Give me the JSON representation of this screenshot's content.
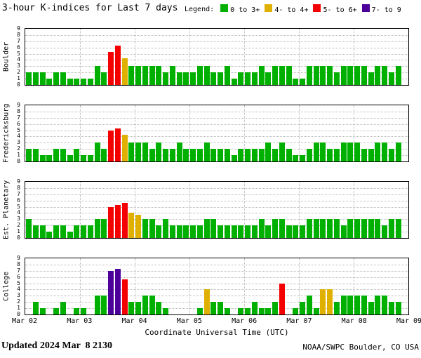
{
  "title": "3-hour K-indices for Last 7 days",
  "legend": {
    "label": "Legend:",
    "items": [
      {
        "label": "0 to 3+",
        "color": "#00b000"
      },
      {
        "label": "4- to 4+",
        "color": "#e0b000"
      },
      {
        "label": "5- to 6+",
        "color": "#f40000"
      },
      {
        "label": "7- to 9",
        "color": "#4c0099"
      }
    ]
  },
  "footer": {
    "updated_label": "Updated",
    "updated_value": "2024 Mar  8 2130",
    "credit": "NOAA/SWPC Boulder, CO USA"
  },
  "chart_data": {
    "type": "bar",
    "title": "3-hour K-indices for Last 7 days",
    "xlabel": "Coordinate Universal Time (UTC)",
    "ylabel": "",
    "ylim": [
      0,
      9
    ],
    "y_ticks": [
      0,
      1,
      2,
      3,
      4,
      5,
      6,
      7,
      8,
      9
    ],
    "x_tick_labels": [
      "Mar 02",
      "Mar 03",
      "Mar 04",
      "Mar 05",
      "Mar 06",
      "Mar 07",
      "Mar 08",
      "Mar 09"
    ],
    "bar_interval_hours": 3,
    "bars_per_day": 8,
    "grid": true,
    "legend_position": "top-right",
    "color_rules": [
      {
        "min": 0,
        "max": 3.33,
        "color": "#00b000",
        "label": "0 to 3+"
      },
      {
        "min": 3.67,
        "max": 4.33,
        "color": "#e0b000",
        "label": "4- to 4+"
      },
      {
        "min": 4.67,
        "max": 6.33,
        "color": "#f40000",
        "label": "5- to 6+"
      },
      {
        "min": 6.67,
        "max": 9,
        "color": "#4c0099",
        "label": "7- to 9"
      }
    ],
    "series": [
      {
        "name": "Boulder",
        "values": [
          2,
          2,
          2,
          1,
          2,
          2,
          1,
          1,
          1,
          1,
          3,
          2,
          5.33,
          6.33,
          4.33,
          3,
          3,
          3,
          3,
          3,
          2,
          3,
          2,
          2,
          2,
          3,
          3,
          2,
          2,
          3,
          1,
          2,
          2,
          2,
          3,
          2,
          3,
          3,
          3,
          1,
          1,
          3,
          3,
          3,
          3,
          2,
          3,
          3,
          3,
          3,
          2,
          3,
          3,
          2,
          3
        ]
      },
      {
        "name": "Fredericksburg",
        "values": [
          2,
          2,
          1,
          1,
          2,
          2,
          1,
          2,
          1,
          1,
          3,
          2,
          5,
          5.33,
          4.33,
          3,
          3,
          3,
          2,
          3,
          2,
          2,
          3,
          2,
          2,
          2,
          3,
          2,
          2,
          2,
          1,
          2,
          2,
          2,
          2,
          3,
          2,
          3,
          2,
          1,
          1,
          2,
          3,
          3,
          2,
          2,
          3,
          3,
          3,
          2,
          2,
          3,
          3,
          2,
          3
        ]
      },
      {
        "name": "Est. Planetary",
        "values": [
          3,
          2,
          2,
          1,
          2,
          2,
          1,
          2,
          2,
          2,
          3,
          3,
          5,
          5.33,
          5.67,
          4,
          3.67,
          3,
          3,
          2,
          3,
          2,
          2,
          2,
          2,
          2,
          3,
          3,
          2,
          2,
          2,
          2,
          2,
          2,
          3,
          2,
          3,
          3,
          2,
          2,
          2,
          3,
          3,
          3,
          3,
          3,
          2,
          3,
          3,
          3,
          3,
          3,
          2,
          3,
          3
        ]
      },
      {
        "name": "College",
        "values": [
          0,
          2,
          1,
          0,
          1,
          2,
          0,
          1,
          1,
          0,
          3,
          3,
          7,
          7.33,
          5.67,
          2,
          2,
          3,
          3,
          2,
          1,
          0,
          0,
          0,
          0,
          1,
          4,
          2,
          2,
          1,
          0,
          1,
          1,
          2,
          1,
          1,
          2,
          5,
          0,
          1,
          2,
          3,
          1,
          4,
          4,
          2,
          3,
          3,
          3,
          3,
          2,
          3,
          3,
          2,
          2
        ]
      }
    ]
  }
}
